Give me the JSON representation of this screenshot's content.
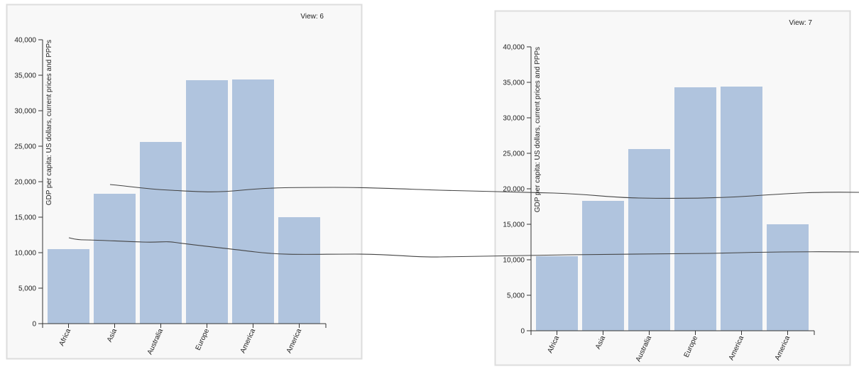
{
  "chart_data": [
    {
      "type": "bar",
      "view_label": "View: 6",
      "ylabel": "GDP per capita: US dollars, current prices and PPPs",
      "categories": [
        "Africa",
        "Asia",
        "Australia",
        "Europe",
        "America",
        "America"
      ],
      "values": [
        10500,
        18300,
        25600,
        34300,
        34400,
        15000
      ],
      "ylim": [
        0,
        40000
      ],
      "yticks": [
        "0",
        "5,000",
        "10,000",
        "15,000",
        "20,000",
        "25,000",
        "30,000",
        "35,000",
        "40,000"
      ],
      "grid": false
    },
    {
      "type": "bar",
      "view_label": "View: 7",
      "ylabel": "GDP per capita: US dollars, current prices and PPPs",
      "categories": [
        "Africa",
        "Asia",
        "Australia",
        "Europe",
        "America",
        "America"
      ],
      "values": [
        10500,
        18300,
        25600,
        34300,
        34400,
        15000
      ],
      "ylim": [
        0,
        40000
      ],
      "yticks": [
        "0",
        "5,000",
        "10,000",
        "15,000",
        "20,000",
        "25,000",
        "30,000",
        "35,000",
        "40,000"
      ],
      "grid": false
    }
  ],
  "colors": {
    "bar": "#b0c4de",
    "panel": "#f8f8f8",
    "border": "#dddddd",
    "stroke": "#333333"
  }
}
